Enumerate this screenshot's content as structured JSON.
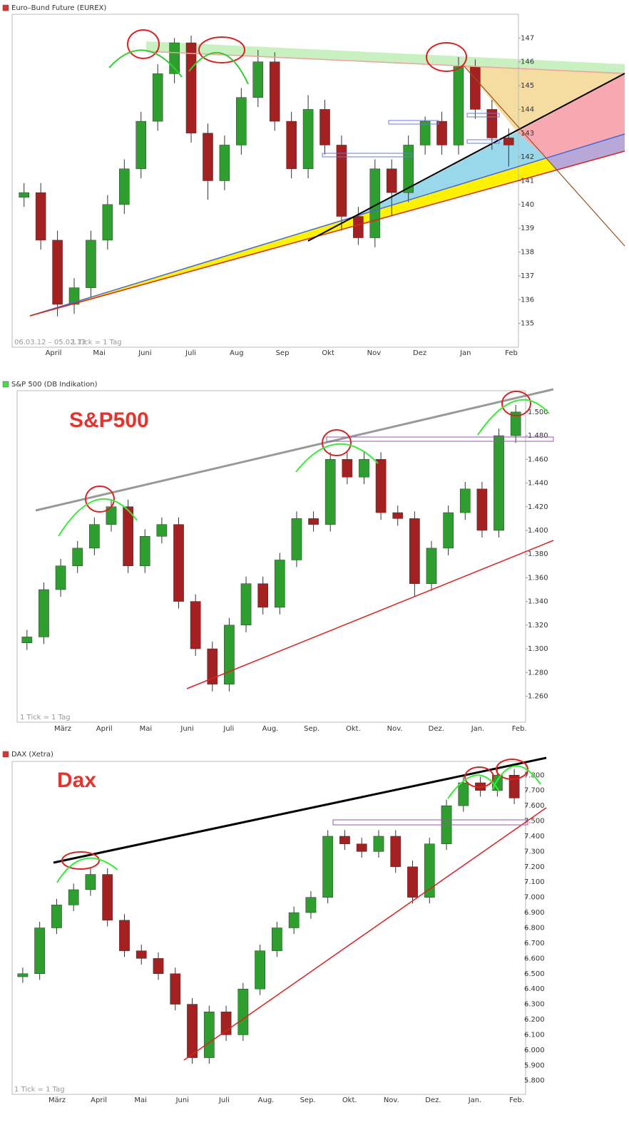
{
  "chart_data": [
    {
      "type": "candlestick",
      "title": "Euro–Bund Future (EUREX)",
      "marker_color": "#e03030",
      "range": "06.03.12 – 05.02.13",
      "tick_note": "1 Tick = 1 Tag",
      "months": [
        "April",
        "Mai",
        "Juni",
        "Juli",
        "Aug",
        "Sep",
        "Okt",
        "Nov",
        "Dez",
        "Jan",
        "Feb"
      ],
      "up_color": "#2e9e2e",
      "down_color": "#a52020",
      "open": [
        140.3,
        140.5,
        138.5,
        135.8,
        136.5,
        138.5,
        140,
        141.5,
        143.5,
        145.5,
        146.8,
        143,
        141,
        142.5,
        144.5,
        146,
        143.5,
        141.5,
        144,
        142.5,
        139.5,
        138.6,
        141.5,
        140.5,
        142.5,
        143.5,
        142.5,
        145.8,
        144,
        142.8
      ],
      "high": [
        140.9,
        140.9,
        138.9,
        136.9,
        138.9,
        140.4,
        141.9,
        143.9,
        145.9,
        147,
        147.1,
        143.4,
        142.9,
        144.9,
        146.5,
        146.4,
        143.9,
        144.6,
        144.4,
        142.9,
        139.9,
        141.9,
        141.9,
        142.9,
        143.7,
        143.9,
        146.2,
        146.1,
        144.4,
        143.2
      ],
      "low": [
        139.9,
        138.1,
        135.3,
        135.4,
        136.1,
        138.1,
        139.6,
        141.1,
        143.1,
        145.1,
        142.6,
        140.2,
        140.6,
        142.1,
        144.1,
        143.1,
        141.1,
        141.1,
        142.1,
        138.9,
        138.3,
        138.2,
        139.5,
        140.1,
        142.1,
        142.1,
        142.1,
        143.6,
        142.3,
        141.6
      ],
      "close": [
        140.5,
        138.5,
        135.8,
        136.5,
        138.5,
        140,
        141.5,
        143.5,
        145.5,
        146.8,
        143,
        141,
        142.5,
        144.5,
        146,
        143.5,
        141.5,
        144,
        142.5,
        139.5,
        138.6,
        141.5,
        140.5,
        142.5,
        143.5,
        142.5,
        145.8,
        144,
        142.8,
        142.5
      ],
      "ylim": [
        134,
        148
      ],
      "yticks": [
        135,
        136,
        137,
        138,
        139,
        140,
        141,
        142,
        143,
        144,
        145,
        146,
        147
      ]
    },
    {
      "type": "candlestick",
      "title": "S&P 500 (DB Indikation)",
      "marker_color": "#44dd44",
      "label": "S&P500",
      "tick_note": "1 Tick = 1 Tag",
      "months": [
        "März",
        "April",
        "Mai",
        "Juni",
        "Juli",
        "Aug.",
        "Sep.",
        "Okt.",
        "Nov.",
        "Dez.",
        "Jan.",
        "Feb."
      ],
      "up_color": "#2e9e2e",
      "down_color": "#a52020",
      "open": [
        1305,
        1310,
        1350,
        1370,
        1385,
        1405,
        1420,
        1370,
        1395,
        1405,
        1340,
        1300,
        1270,
        1320,
        1355,
        1335,
        1375,
        1410,
        1405,
        1460,
        1445,
        1460,
        1415,
        1410,
        1355,
        1385,
        1415,
        1435,
        1400,
        1480
      ],
      "high": [
        1316,
        1356,
        1376,
        1391,
        1411,
        1426,
        1426,
        1401,
        1411,
        1411,
        1346,
        1306,
        1326,
        1361,
        1361,
        1381,
        1416,
        1416,
        1466,
        1466,
        1466,
        1466,
        1421,
        1416,
        1391,
        1421,
        1441,
        1441,
        1486,
        1506
      ],
      "low": [
        1299,
        1304,
        1344,
        1364,
        1379,
        1399,
        1364,
        1364,
        1389,
        1334,
        1294,
        1264,
        1264,
        1314,
        1329,
        1329,
        1369,
        1399,
        1399,
        1439,
        1439,
        1409,
        1404,
        1344,
        1349,
        1379,
        1409,
        1394,
        1394,
        1474
      ],
      "close": [
        1310,
        1350,
        1370,
        1385,
        1405,
        1420,
        1370,
        1395,
        1405,
        1340,
        1300,
        1270,
        1320,
        1355,
        1335,
        1375,
        1410,
        1405,
        1460,
        1445,
        1460,
        1415,
        1410,
        1355,
        1385,
        1415,
        1435,
        1400,
        1480,
        1500
      ],
      "ylim": [
        1238,
        1518
      ],
      "yticks": [
        {
          "value": 1260,
          "label": "1.260"
        },
        {
          "value": 1280,
          "label": "1.280"
        },
        {
          "value": 1300,
          "label": "1.300"
        },
        {
          "value": 1320,
          "label": "1.320"
        },
        {
          "value": 1340,
          "label": "1.340"
        },
        {
          "value": 1360,
          "label": "1.360"
        },
        {
          "value": 1380,
          "label": "1.380"
        },
        {
          "value": 1400,
          "label": "1.400"
        },
        {
          "value": 1420,
          "label": "1.420"
        },
        {
          "value": 1440,
          "label": "1.440"
        },
        {
          "value": 1460,
          "label": "1.460"
        },
        {
          "value": 1480,
          "label": "1.480"
        },
        {
          "value": 1500,
          "label": "1.500"
        }
      ]
    },
    {
      "type": "candlestick",
      "title": "DAX (Xetra)",
      "marker_color": "#e03030",
      "label": "Dax",
      "tick_note": "1 Tick = 1 Tag",
      "months": [
        "März",
        "April",
        "Mai",
        "Juni",
        "Juli",
        "Aug.",
        "Sep.",
        "Okt.",
        "Nov.",
        "Dez.",
        "Jan.",
        "Feb."
      ],
      "up_color": "#2e9e2e",
      "down_color": "#a52020",
      "open": [
        6480,
        6500,
        6800,
        6950,
        7050,
        7150,
        6850,
        6650,
        6600,
        6500,
        6300,
        5950,
        6250,
        6100,
        6400,
        6650,
        6800,
        6900,
        7000,
        7400,
        7350,
        7300,
        7400,
        7200,
        7000,
        7350,
        7600,
        7750,
        7700,
        7800
      ],
      "high": [
        6540,
        6840,
        6990,
        7090,
        7190,
        7190,
        6890,
        6690,
        6640,
        6540,
        6340,
        6290,
        6290,
        6440,
        6690,
        6840,
        6940,
        7040,
        7440,
        7440,
        7390,
        7440,
        7440,
        7240,
        7390,
        7640,
        7790,
        7790,
        7840,
        7840
      ],
      "low": [
        6440,
        6460,
        6760,
        6910,
        7010,
        6810,
        6610,
        6560,
        6460,
        6260,
        5910,
        5910,
        6060,
        6060,
        6360,
        6610,
        6760,
        6860,
        6960,
        7310,
        7260,
        7260,
        7160,
        6960,
        6960,
        7310,
        7560,
        7660,
        7660,
        7610
      ],
      "close": [
        6500,
        6800,
        6950,
        7050,
        7150,
        6850,
        6650,
        6600,
        6500,
        6300,
        5950,
        6250,
        6100,
        6400,
        6650,
        6800,
        6900,
        7000,
        7400,
        7350,
        7300,
        7400,
        7200,
        7000,
        7350,
        7600,
        7750,
        7700,
        7800,
        7650
      ],
      "ylim": [
        5710,
        7890
      ],
      "yticks": [
        {
          "value": 5800,
          "label": "5.800"
        },
        {
          "value": 5900,
          "label": "5.900"
        },
        {
          "value": 6000,
          "label": "6.000"
        },
        {
          "value": 6100,
          "label": "6.100"
        },
        {
          "value": 6200,
          "label": "6.200"
        },
        {
          "value": 6300,
          "label": "6.300"
        },
        {
          "value": 6400,
          "label": "6.400"
        },
        {
          "value": 6500,
          "label": "6.500"
        },
        {
          "value": 6600,
          "label": "6.600"
        },
        {
          "value": 6700,
          "label": "6.700"
        },
        {
          "value": 6800,
          "label": "6.800"
        },
        {
          "value": 6900,
          "label": "6.900"
        },
        {
          "value": 7000,
          "label": "7.000"
        },
        {
          "value": 7100,
          "label": "7.100"
        },
        {
          "value": 7200,
          "label": "7.200"
        },
        {
          "value": 7300,
          "label": "7.300"
        },
        {
          "value": 7400,
          "label": "7.400"
        },
        {
          "value": 7500,
          "label": "7.500"
        },
        {
          "value": 7600,
          "label": "7.600"
        },
        {
          "value": 7700,
          "label": "7.700"
        },
        {
          "value": 7800,
          "label": "7.800"
        }
      ]
    }
  ]
}
